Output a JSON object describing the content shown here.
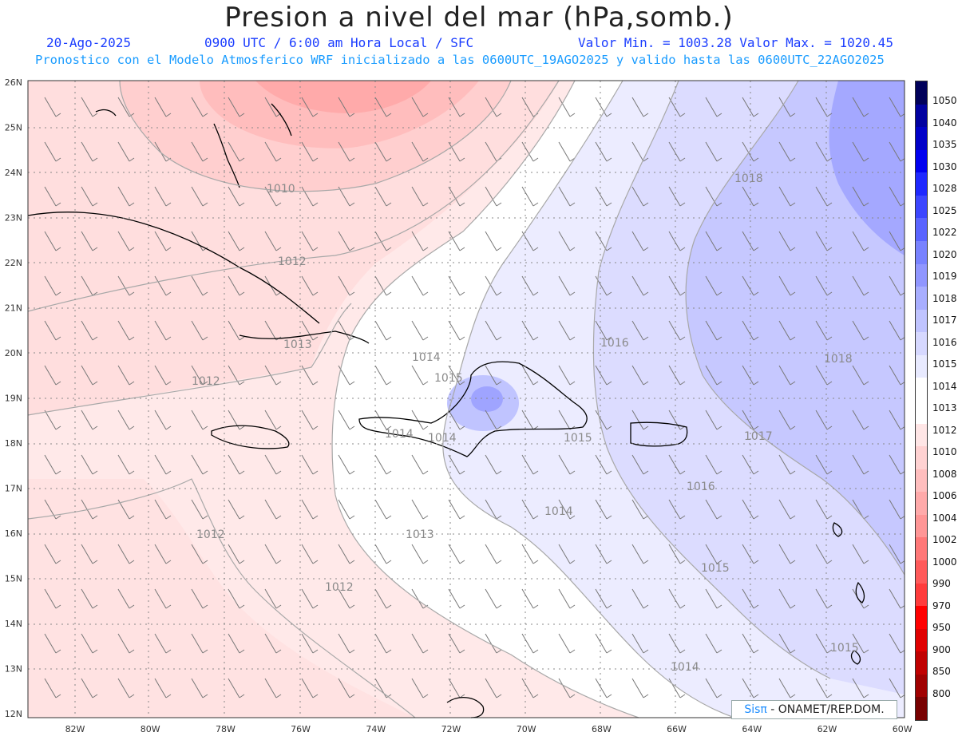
{
  "header": {
    "title": "Presion a nivel del mar (hPa,somb.)",
    "date": "20-Ago-2025",
    "time": "0900 UTC / 6:00 am Hora Local / SFC",
    "min_max": "Valor Min. = 1003.28  Valor Max. = 1020.45",
    "forecast_note": "Pronostico con el Modelo Atmosferico WRF inicializado a las 0600UTC_19AGO2025 y valido hasta las  0600UTC_22AGO2025"
  },
  "map": {
    "lat_labels": [
      "26N",
      "25N",
      "24N",
      "23N",
      "22N",
      "21N",
      "20N",
      "19N",
      "18N",
      "17N",
      "16N",
      "15N",
      "14N",
      "13N",
      "12N"
    ],
    "lon_labels": [
      "82W",
      "80W",
      "78W",
      "76W",
      "74W",
      "72W",
      "70W",
      "68W",
      "66W",
      "64W",
      "62W",
      "60W"
    ],
    "isobar_labels": [
      {
        "text": "1010"
      },
      {
        "text": "1012"
      },
      {
        "text": "1012"
      },
      {
        "text": "1013"
      },
      {
        "text": "1014"
      },
      {
        "text": "1015"
      },
      {
        "text": "1016"
      },
      {
        "text": "1018"
      },
      {
        "text": "1018"
      },
      {
        "text": "1014"
      },
      {
        "text": "1014"
      },
      {
        "text": "1015"
      },
      {
        "text": "1017"
      },
      {
        "text": "1016"
      },
      {
        "text": "1014"
      },
      {
        "text": "1013"
      },
      {
        "text": "1012"
      },
      {
        "text": "1012"
      },
      {
        "text": "1015"
      },
      {
        "text": "1015"
      },
      {
        "text": "1014"
      }
    ]
  },
  "credit": {
    "brand": "Sisπ",
    "org": " - ONAMET/REP.DOM."
  },
  "colorbar": {
    "levels": [
      "1050",
      "1040",
      "1035",
      "1030",
      "1028",
      "1025",
      "1022",
      "1020",
      "1019",
      "1018",
      "1017",
      "1016",
      "1015",
      "1014",
      "1013",
      "1012",
      "1010",
      "1008",
      "1006",
      "1004",
      "1002",
      "1000",
      "990",
      "970",
      "950",
      "900",
      "850",
      "800"
    ],
    "colors": [
      "#00005a",
      "#0000a0",
      "#0000c8",
      "#0000f0",
      "#1e28ff",
      "#3c46ff",
      "#5a64ff",
      "#7882ff",
      "#9096ff",
      "#a8aeff",
      "#c0c4ff",
      "#d6d8ff",
      "#e8eaff",
      "#ffffff",
      "#ffffff",
      "#ffe6e6",
      "#ffd2d2",
      "#ffbebe",
      "#ffaaaa",
      "#ff9696",
      "#ff7878",
      "#ff5a5a",
      "#ff3c3c",
      "#ff0000",
      "#e00000",
      "#c00000",
      "#a00000",
      "#780000"
    ]
  }
}
